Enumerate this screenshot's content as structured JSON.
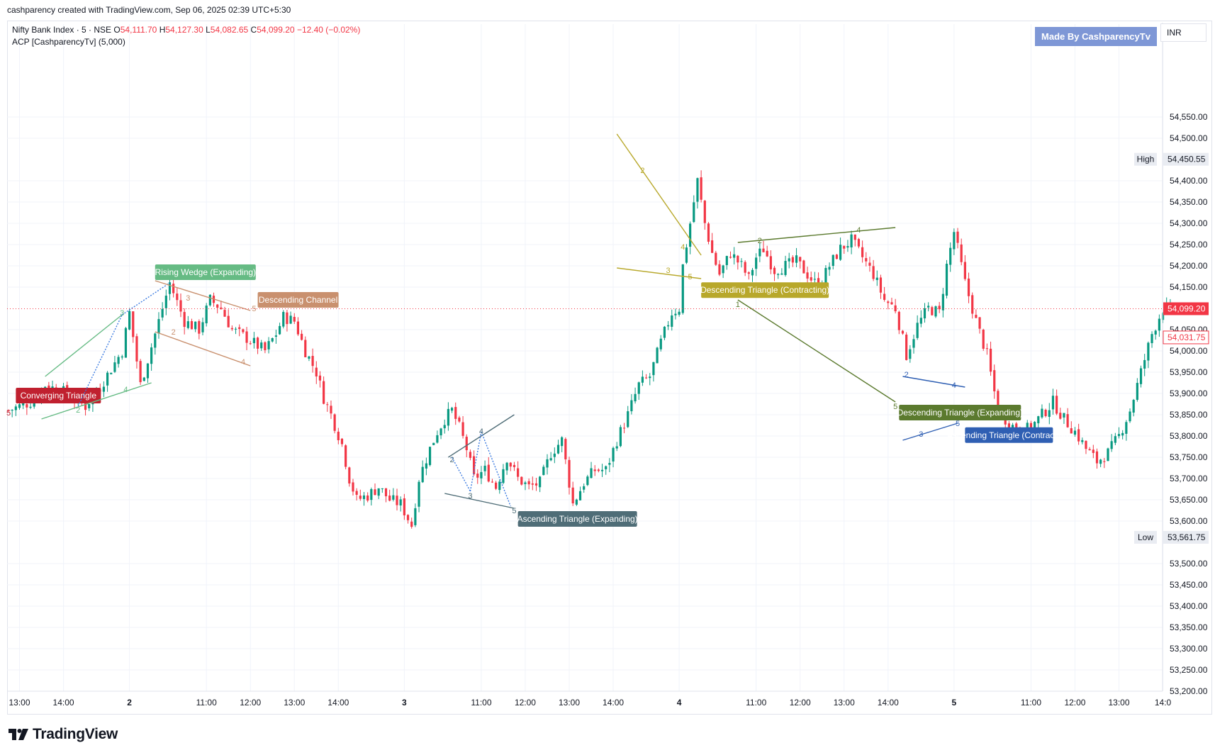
{
  "header": {
    "attribution": "cashparency created with TradingView.com, Sep 06, 2025 02:39 UTC+5:30"
  },
  "legend": {
    "symbol": "Nifty Bank Index · 5 · NSE",
    "open_label": "O",
    "open": "54,111.70",
    "high_label": "H",
    "high": "54,127.30",
    "low_label": "L",
    "low": "54,082.65",
    "close_label": "C",
    "close": "54,099.20",
    "change": "−12.40 (−0.02%)",
    "indicator": "ACP [CashparencyTv] (5,000)"
  },
  "made_by": "Made By CashparencyTv",
  "currency": "INR",
  "logo_text": "TradingView",
  "colors": {
    "up": "#089981",
    "down": "#f23645",
    "grid": "#f0f3fa",
    "axis_text": "#131722",
    "wedge": "#66bb84",
    "desc_channel": "#c9906e",
    "asc_exp": "#4f6d77",
    "desc_tri_contracting": "#b8a82b",
    "desc_tri_expanding": "#5b7a2e",
    "asc_contracting": "#2f5fb3",
    "converging": "#c0202f",
    "zigzag": "#3c7be0"
  },
  "chart_data": {
    "type": "candlestick",
    "title": "",
    "symbol": "Nifty Bank Index",
    "timeframe": "5",
    "exchange": "NSE",
    "currency": "INR",
    "ylim": [
      53180,
      54610
    ],
    "y_ticks": [
      "54,550.00",
      "54,500.00",
      "54,400.00",
      "54,350.00",
      "54,300.00",
      "54,250.00",
      "54,200.00",
      "54,150.00",
      "54,050.00",
      "54,000.00",
      "53,950.00",
      "53,900.00",
      "53,850.00",
      "53,800.00",
      "53,750.00",
      "53,700.00",
      "53,650.00",
      "53,600.00",
      "53,500.00",
      "53,450.00",
      "53,400.00",
      "53,350.00",
      "53,300.00",
      "53,250.00",
      "53,200.00"
    ],
    "x_ticks": [
      {
        "label": "13:00",
        "idx": 3
      },
      {
        "label": "14:00",
        "idx": 15
      },
      {
        "label": "2",
        "idx": 33
      },
      {
        "label": "11:00",
        "idx": 54
      },
      {
        "label": "12:00",
        "idx": 66
      },
      {
        "label": "13:00",
        "idx": 78
      },
      {
        "label": "14:00",
        "idx": 90
      },
      {
        "label": "3",
        "idx": 108
      },
      {
        "label": "11:00",
        "idx": 129
      },
      {
        "label": "12:00",
        "idx": 141
      },
      {
        "label": "13:00",
        "idx": 153
      },
      {
        "label": "14:00",
        "idx": 165
      },
      {
        "label": "4",
        "idx": 183
      },
      {
        "label": "11:00",
        "idx": 204
      },
      {
        "label": "12:00",
        "idx": 216
      },
      {
        "label": "13:00",
        "idx": 228
      },
      {
        "label": "14:00",
        "idx": 240
      },
      {
        "label": "5",
        "idx": 258
      },
      {
        "label": "11:00",
        "idx": 279
      },
      {
        "label": "12:00",
        "idx": 291
      },
      {
        "label": "13:00",
        "idx": 303
      },
      {
        "label": "14:0",
        "idx": 315
      }
    ],
    "day_separators": [
      33,
      108,
      183,
      258
    ],
    "price_markers": [
      {
        "label": "High",
        "value": "54,450.55"
      },
      {
        "label": "Low",
        "value": "53,561.75"
      },
      {
        "label": "",
        "value": "54,099.20"
      },
      {
        "label": "",
        "value": "54,031.75"
      }
    ],
    "anchors": [
      [
        0,
        53860
      ],
      [
        6,
        53880
      ],
      [
        10,
        53920
      ],
      [
        16,
        53900
      ],
      [
        21,
        53870
      ],
      [
        26,
        53930
      ],
      [
        31,
        54000
      ],
      [
        33,
        54090
      ],
      [
        36,
        53920
      ],
      [
        40,
        54040
      ],
      [
        44,
        54160
      ],
      [
        48,
        54070
      ],
      [
        52,
        54050
      ],
      [
        55,
        54120
      ],
      [
        58,
        54100
      ],
      [
        61,
        54050
      ],
      [
        65,
        54030
      ],
      [
        70,
        54000
      ],
      [
        73,
        54040
      ],
      [
        75,
        54080
      ],
      [
        78,
        54070
      ],
      [
        81,
        54000
      ],
      [
        84,
        53950
      ],
      [
        86,
        53890
      ],
      [
        88,
        53850
      ],
      [
        91,
        53780
      ],
      [
        93,
        53700
      ],
      [
        95,
        53650
      ],
      [
        98,
        53660
      ],
      [
        101,
        53680
      ],
      [
        104,
        53650
      ],
      [
        107,
        53640
      ],
      [
        110,
        53590
      ],
      [
        112,
        53700
      ],
      [
        115,
        53770
      ],
      [
        117,
        53810
      ],
      [
        119,
        53840
      ],
      [
        121,
        53860
      ],
      [
        123,
        53820
      ],
      [
        125,
        53770
      ],
      [
        127,
        53700
      ],
      [
        130,
        53720
      ],
      [
        133,
        53680
      ],
      [
        136,
        53750
      ],
      [
        139,
        53700
      ],
      [
        142,
        53680
      ],
      [
        145,
        53690
      ],
      [
        148,
        53760
      ],
      [
        151,
        53790
      ],
      [
        154,
        53640
      ],
      [
        157,
        53690
      ],
      [
        160,
        53720
      ],
      [
        163,
        53720
      ],
      [
        166,
        53790
      ],
      [
        169,
        53850
      ],
      [
        172,
        53920
      ],
      [
        175,
        53940
      ],
      [
        178,
        54020
      ],
      [
        181,
        54090
      ],
      [
        183,
        54100
      ],
      [
        184,
        54200
      ],
      [
        186,
        54300
      ],
      [
        188,
        54400
      ],
      [
        190,
        54300
      ],
      [
        192,
        54230
      ],
      [
        194,
        54180
      ],
      [
        197,
        54230
      ],
      [
        200,
        54200
      ],
      [
        202,
        54170
      ],
      [
        204,
        54220
      ],
      [
        206,
        54240
      ],
      [
        209,
        54190
      ],
      [
        212,
        54200
      ],
      [
        215,
        54210
      ],
      [
        218,
        54180
      ],
      [
        221,
        54150
      ],
      [
        224,
        54200
      ],
      [
        227,
        54240
      ],
      [
        230,
        54260
      ],
      [
        233,
        54220
      ],
      [
        236,
        54180
      ],
      [
        239,
        54120
      ],
      [
        242,
        54100
      ],
      [
        245,
        53990
      ],
      [
        248,
        54060
      ],
      [
        251,
        54100
      ],
      [
        254,
        54090
      ],
      [
        256,
        54200
      ],
      [
        258,
        54280
      ],
      [
        261,
        54160
      ],
      [
        264,
        54070
      ],
      [
        267,
        53990
      ],
      [
        270,
        53860
      ],
      [
        273,
        53830
      ],
      [
        276,
        53810
      ],
      [
        279,
        53820
      ],
      [
        282,
        53850
      ],
      [
        285,
        53880
      ],
      [
        288,
        53840
      ],
      [
        291,
        53810
      ],
      [
        294,
        53770
      ],
      [
        297,
        53740
      ],
      [
        300,
        53760
      ],
      [
        303,
        53800
      ],
      [
        306,
        53860
      ],
      [
        309,
        53950
      ],
      [
        312,
        54040
      ],
      [
        315,
        54100
      ],
      [
        317,
        54099
      ]
    ],
    "patterns": [
      {
        "label": "Converging Triangle",
        "color_key": "converging"
      },
      {
        "label": "Rising Wedge (Expanding)",
        "color_key": "wedge"
      },
      {
        "label": "Descending Channel",
        "color_key": "desc_channel"
      },
      {
        "label": "Ascending Triangle (Expanding)",
        "color_key": "asc_exp"
      },
      {
        "label": "Descending Triangle (Contracting)",
        "color_key": "desc_tri_contracting"
      },
      {
        "label": "Descending Triangle (Expanding)",
        "color_key": "desc_tri_expanding"
      },
      {
        "label": "Ascending Triangle (Contracting)",
        "color_key": "asc_contracting"
      }
    ]
  }
}
